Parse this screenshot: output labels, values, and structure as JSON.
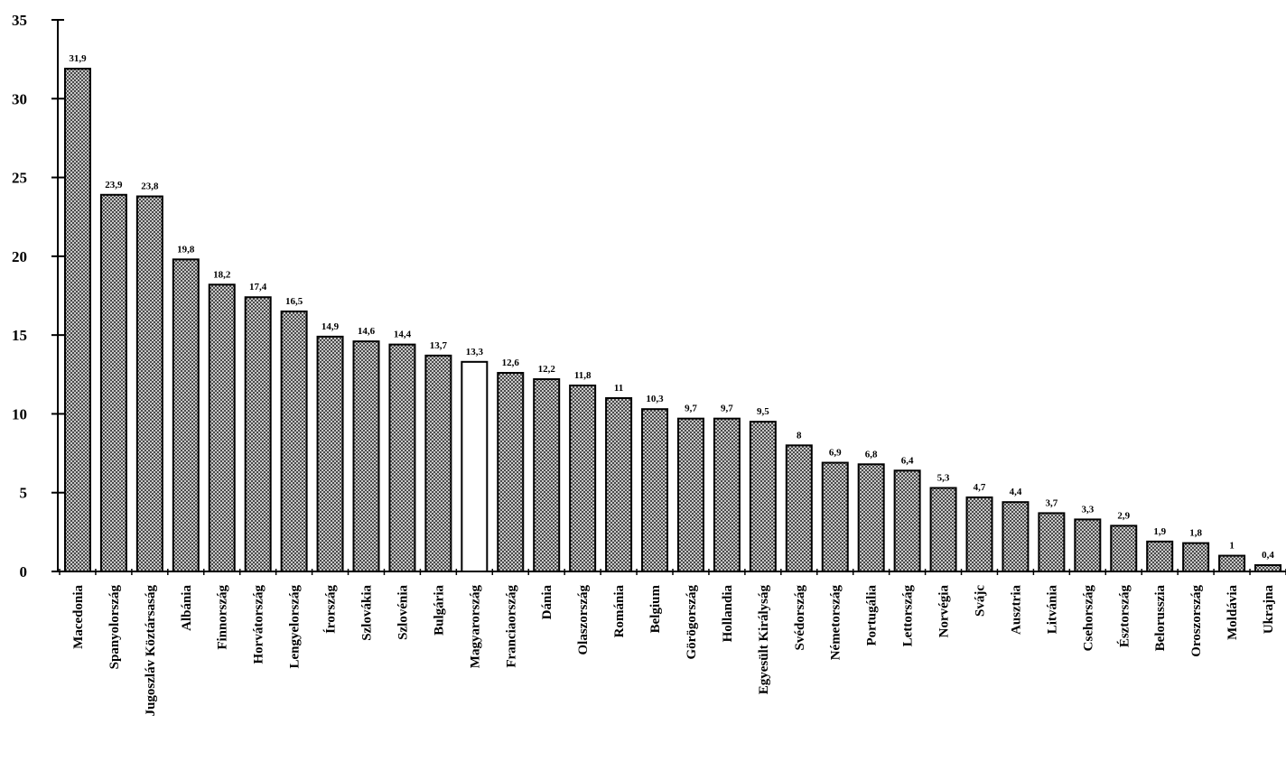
{
  "chart_data": {
    "type": "bar",
    "categories": [
      "Macedonia",
      "Spanyolország",
      "Jugoszláv Köztársaság",
      "Albánia",
      "Finnország",
      "Horvátország",
      "Lengyelország",
      "Írország",
      "Szlovákia",
      "Szlovénia",
      "Bulgária",
      "Magyarország",
      "Franciaország",
      "Dánia",
      "Olaszország",
      "Románia",
      "Belgium",
      "Görögország",
      "Hollandia",
      "Egyesült Királyság",
      "Svédország",
      "Németország",
      "Portugália",
      "Lettország",
      "Norvégia",
      "Svájc",
      "Ausztria",
      "Litvánia",
      "Csehország",
      "Észtország",
      "Belorusszia",
      "Oroszország",
      "Moldávia",
      "Ukrajna"
    ],
    "values": [
      31.9,
      23.9,
      23.8,
      19.8,
      18.2,
      17.4,
      16.5,
      14.9,
      14.6,
      14.4,
      13.7,
      13.3,
      12.6,
      12.2,
      11.8,
      11,
      10.3,
      9.7,
      9.7,
      9.5,
      8,
      6.9,
      6.8,
      6.4,
      5.3,
      4.7,
      4.4,
      3.7,
      3.3,
      2.9,
      1.9,
      1.8,
      1,
      0.4
    ],
    "value_labels": [
      "31,9",
      "23,9",
      "23,8",
      "19,8",
      "18,2",
      "17,4",
      "16,5",
      "14,9",
      "14,6",
      "14,4",
      "13,7",
      "13,3",
      "12,6",
      "12,2",
      "11,8",
      "11",
      "10,3",
      "9,7",
      "9,7",
      "9,5",
      "8",
      "6,9",
      "6,8",
      "6,4",
      "5,3",
      "4,7",
      "4,4",
      "3,7",
      "3,3",
      "2,9",
      "1,9",
      "1,8",
      "1",
      "0,4"
    ],
    "highlight_category": "Magyarország",
    "ylim": [
      0,
      35
    ],
    "yticks": [
      "0",
      "5",
      "10",
      "15",
      "20",
      "25",
      "30",
      "35"
    ],
    "ytick_values": [
      0,
      5,
      10,
      15,
      20,
      25,
      30,
      35
    ],
    "title": "",
    "xlabel": "",
    "ylabel": "",
    "grid": false,
    "legend": "none",
    "bar_fill": "hatched dark gray",
    "highlight_fill": "#ffffff"
  }
}
